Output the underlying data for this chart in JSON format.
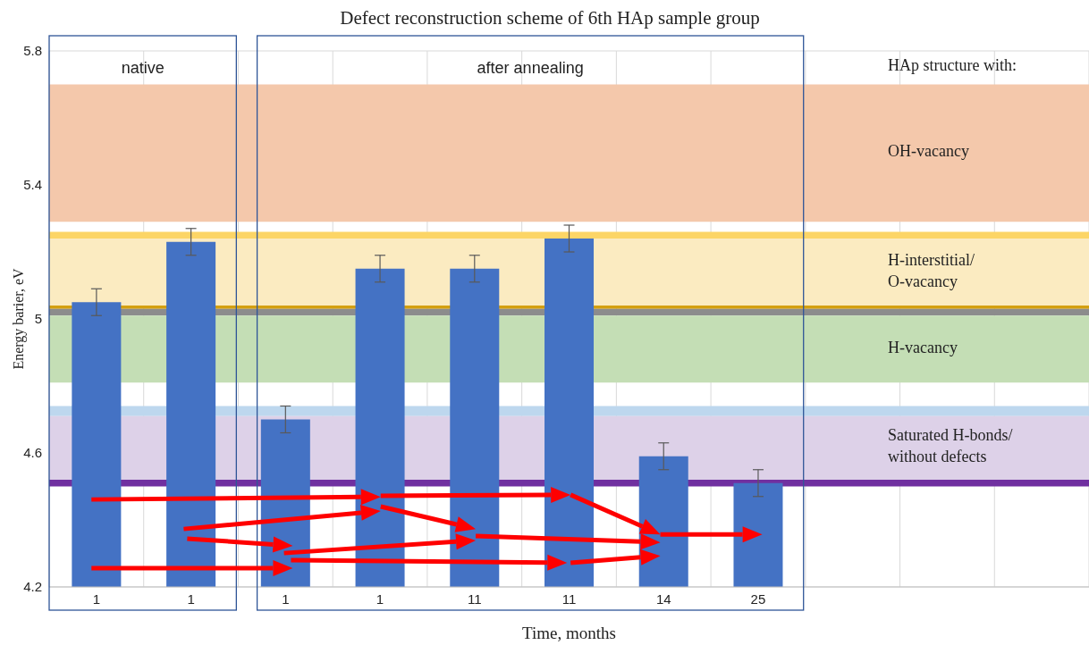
{
  "chart_data": {
    "type": "bar",
    "title": "Defect reconstruction scheme of 6th HAp sample group",
    "xlabel": "Time, months",
    "ylabel": "Energy barier, eV",
    "categories": [
      "1",
      "1",
      "1",
      "1",
      "11",
      "11",
      "14",
      "25",
      null,
      null,
      null
    ],
    "values": [
      5.05,
      5.23,
      4.7,
      5.15,
      5.15,
      5.24,
      4.59,
      4.51,
      null,
      null,
      null
    ],
    "errors": [
      0.04,
      0.04,
      0.04,
      0.04,
      0.04,
      0.04,
      0.04,
      0.04,
      null,
      null,
      null
    ],
    "color": "#4472c4",
    "ylim": [
      4.2,
      5.8
    ],
    "yticks": [
      4.2,
      4.6,
      5,
      5.4,
      5.8
    ],
    "grid": true,
    "bands": [
      {
        "axis": "y",
        "from": 5.29,
        "to": 5.7,
        "label": "OH-vacancy",
        "color": "#f4c8ab"
      },
      {
        "axis": "y",
        "from": 5.24,
        "to": 5.26,
        "color": "#fcd566"
      },
      {
        "axis": "y",
        "from": 5.04,
        "to": 5.24,
        "label": "H-interstitial/O-vacancy",
        "color": "#fbebc1"
      },
      {
        "axis": "y",
        "from": 5.03,
        "to": 5.04,
        "color": "#d4a010"
      },
      {
        "axis": "y",
        "from": 5.01,
        "to": 5.03,
        "color": "#8c8c8c"
      },
      {
        "axis": "y",
        "from": 4.81,
        "to": 5.01,
        "label": "H-vacancy",
        "color": "#c4deb5"
      },
      {
        "axis": "y",
        "from": 4.71,
        "to": 4.74,
        "color": "#bdd7ee"
      },
      {
        "axis": "y",
        "from": 4.52,
        "to": 4.71,
        "label": "Saturated H-bonds/without defects",
        "color": "#ddd1e8"
      },
      {
        "axis": "y",
        "from": 4.5,
        "to": 4.52,
        "color": "#7030a0"
      }
    ],
    "annotations": [
      "native",
      "after annealing",
      "HAp structure with:"
    ]
  }
}
